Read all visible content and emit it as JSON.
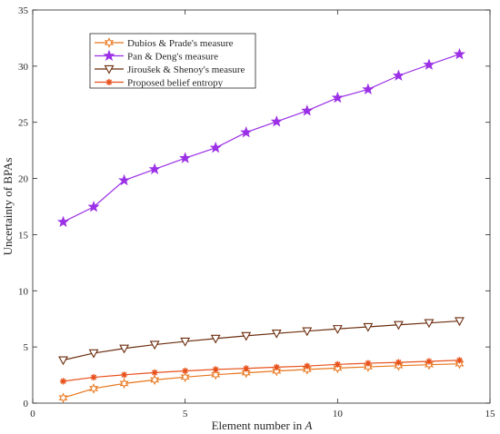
{
  "chart_data": {
    "type": "line",
    "xlabel": "Element number in",
    "xlabel_var": "A",
    "ylabel": "Uncertainty of BPAs",
    "xlim": [
      0,
      15
    ],
    "ylim": [
      0,
      35
    ],
    "xticks": [
      0,
      5,
      10,
      15
    ],
    "yticks": [
      0,
      5,
      10,
      15,
      20,
      25,
      30,
      35
    ],
    "grid": false,
    "legend_position": "top-left",
    "x": [
      1,
      2,
      3,
      4,
      5,
      6,
      7,
      8,
      9,
      10,
      11,
      12,
      13,
      14
    ],
    "series": [
      {
        "name": "Dubios & Prade's measure",
        "color": "#e8751a",
        "marker": "hexagram",
        "values": [
          0.47,
          1.3,
          1.75,
          2.07,
          2.32,
          2.53,
          2.7,
          2.86,
          3.0,
          3.12,
          3.23,
          3.33,
          3.42,
          3.5
        ]
      },
      {
        "name": "Pan & Deng's measure",
        "color": "#9b30e6",
        "marker": "pentagram",
        "values": [
          16.13,
          17.47,
          19.83,
          20.82,
          21.81,
          22.73,
          24.1,
          25.06,
          26.03,
          27.18,
          27.93,
          29.15,
          30.12,
          31.06
        ]
      },
      {
        "name": "Jiroušek & Shenoy's measure",
        "color": "#6b2d0e",
        "marker": "triangle-down",
        "values": [
          3.83,
          4.45,
          4.87,
          5.21,
          5.49,
          5.75,
          5.99,
          6.21,
          6.41,
          6.61,
          6.79,
          6.97,
          7.14,
          7.31
        ]
      },
      {
        "name": "Proposed belief entropy",
        "color": "#e8501a",
        "marker": "asterisk",
        "values": [
          1.95,
          2.3,
          2.52,
          2.72,
          2.87,
          3.0,
          3.09,
          3.2,
          3.3,
          3.45,
          3.55,
          3.63,
          3.72,
          3.82
        ]
      }
    ]
  }
}
